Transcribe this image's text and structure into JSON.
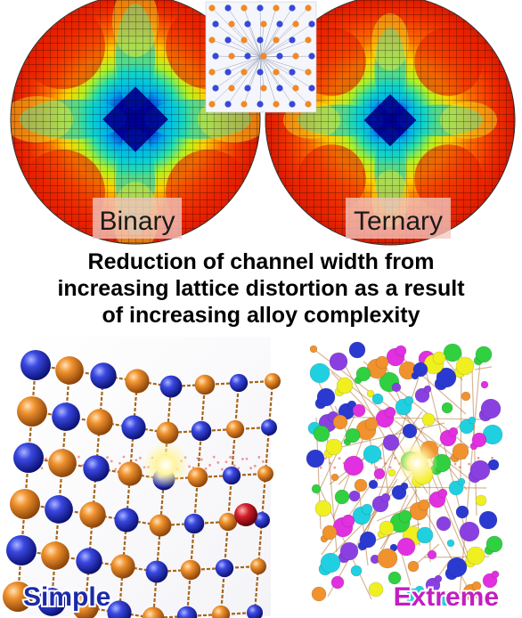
{
  "panels": {
    "left_label": "Binary",
    "right_label": "Ternary"
  },
  "caption": {
    "line1": "Reduction of channel width from",
    "line2": "increasing lattice distortion as a result",
    "line3": "of increasing alloy complexity"
  },
  "bottom": {
    "left_label": "Simple",
    "right_label": "Extreme"
  },
  "colors": {
    "blue_atom": "#2434c8",
    "orange_atom": "#e8892c",
    "bond": "#a8651c",
    "simple_label": "#1c2aa8",
    "extreme_label": "#c21ec2"
  }
}
